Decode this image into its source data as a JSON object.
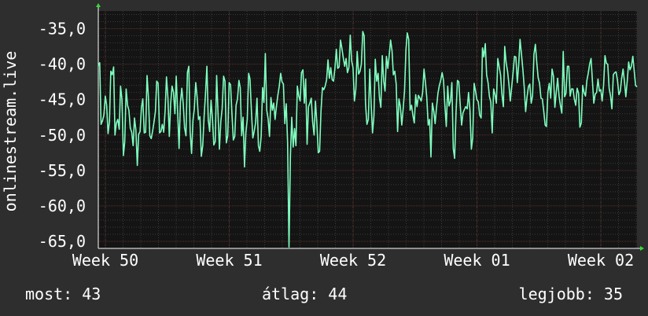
{
  "chart_data": {
    "type": "line",
    "ylabel": "onlinestream.live",
    "yticks": [
      "-35,0",
      "-40,0",
      "-45,0",
      "-50,0",
      "-55,0",
      "-60,0",
      "-65,0"
    ],
    "ylim": [
      -66,
      -32.5
    ],
    "xticks": [
      "Week 50",
      "Week 51",
      "Week 52",
      "Week 01",
      "Week 02"
    ],
    "grid": true,
    "colors": {
      "background": "#2e2e2e",
      "plot": "#141414",
      "line": "#7fffbf",
      "grid_minor": "#3a3a3a",
      "grid_major": "#5a2f2f",
      "axis_arrow": "#33dd33"
    },
    "series": [
      {
        "values": [
          -40.2,
          -39.8,
          -48.5,
          -48.0,
          -47.2,
          -44.5,
          -45.8,
          -49.8,
          -48.1,
          -41.0,
          -41.5,
          -40.4,
          -50.0,
          -48.3,
          -47.8,
          -49.2,
          -43.1,
          -45.0,
          -52.9,
          -51.0,
          -43.5,
          -45.8,
          -46.5,
          -49.0,
          -49.6,
          -51.5,
          -47.6,
          -49.3,
          -54.3,
          -49.9,
          -49.5,
          -46.1,
          -44.9,
          -49.7,
          -49.6,
          -41.6,
          -44.6,
          -50.1,
          -50.5,
          -49.5,
          -48.2,
          -46.7,
          -42.4,
          -42.7,
          -49.7,
          -49.5,
          -48.5,
          -49.6,
          -46.5,
          -41.8,
          -44.7,
          -50.2,
          -45.6,
          -43.1,
          -44.0,
          -47.0,
          -41.7,
          -46.8,
          -51.9,
          -45.4,
          -43.4,
          -45.6,
          -49.0,
          -50.1,
          -41.2,
          -40.3,
          -49.5,
          -52.6,
          -47.9,
          -46.3,
          -42.6,
          -44.7,
          -47.8,
          -47.4,
          -53.0,
          -51.5,
          -47.5,
          -44.2,
          -40.3,
          -47.8,
          -49.5,
          -45.1,
          -47.6,
          -51.4,
          -50.9,
          -41.6,
          -46.8,
          -52.0,
          -48.1,
          -46.3,
          -41.7,
          -42.4,
          -51.1,
          -50.1,
          -42.6,
          -42.9,
          -46.9,
          -50.7,
          -50.2,
          -45.8,
          -44.9,
          -42.3,
          -43.3,
          -50.1,
          -47.5,
          -54.5,
          -49.7,
          -47.8,
          -41.3,
          -42.1,
          -46.6,
          -50.4,
          -49.5,
          -48.3,
          -44.8,
          -51.5,
          -52.3,
          -50.2,
          -43.3,
          -45.4,
          -38.5,
          -46.5,
          -47.7,
          -50.2,
          -44.7,
          -46.5,
          -45.5,
          -47.8,
          -45.9,
          -44.4,
          -43.1,
          -41.3,
          -42.5,
          -42.8,
          -48.4,
          -45.6,
          -51.0,
          -65.8,
          -53.0,
          -47.5,
          -51.7,
          -49.1,
          -51.5,
          -43.1,
          -44.5,
          -45.2,
          -41.2,
          -40.8,
          -45.5,
          -42.1,
          -51.3,
          -46.0,
          -45.5,
          -44.8,
          -48.2,
          -50.0,
          -45.2,
          -48.3,
          -52.5,
          -52.3,
          -46.6,
          -43.3,
          -43.6,
          -43.1,
          -42.2,
          -39.4,
          -42.0,
          -40.5,
          -42.2,
          -42.4,
          -40.6,
          -37.9,
          -40.6,
          -40.4,
          -36.6,
          -37.8,
          -39.1,
          -40.3,
          -39.2,
          -41.2,
          -40.5,
          -35.9,
          -39.5,
          -40.5,
          -45.2,
          -43.5,
          -38.2,
          -41.4,
          -41.0,
          -40.0,
          -35.4,
          -36.0,
          -45.6,
          -48.5,
          -47.8,
          -40.7,
          -45.5,
          -49.7,
          -47.3,
          -39.3,
          -42.4,
          -41.3,
          -44.7,
          -46.1,
          -38.8,
          -42.4,
          -43.8,
          -38.9,
          -40.6,
          -38.8,
          -36.6,
          -38.1,
          -41.5,
          -41.0,
          -42.8,
          -49.5,
          -44.9,
          -46.0,
          -48.6,
          -46.4,
          -43.8,
          -38.0,
          -35.6,
          -36.5,
          -46.5,
          -45.8,
          -47.2,
          -48.3,
          -44.3,
          -46.0,
          -44.4,
          -44.8,
          -45.2,
          -44.0,
          -40.7,
          -42.6,
          -44.7,
          -48.6,
          -47.8,
          -53.1,
          -45.5,
          -46.6,
          -48.4,
          -46.1,
          -44.1,
          -43.0,
          -42.3,
          -41.2,
          -42.3,
          -45.8,
          -48.8,
          -43.1,
          -45.9,
          -45.2,
          -42.6,
          -51.9,
          -53.3,
          -46.8,
          -42.3,
          -42.5,
          -45.7,
          -48.6,
          -46.9,
          -46.4,
          -46.0,
          -46.3,
          -44.0,
          -46.5,
          -52.0,
          -50.4,
          -42.7,
          -43.8,
          -45.0,
          -45.3,
          -47.2,
          -47.6,
          -37.7,
          -39.0,
          -37.1,
          -41.5,
          -42.6,
          -44.6,
          -45.3,
          -49.7,
          -43.5,
          -44.3,
          -45.5,
          -39.2,
          -40.4,
          -41.5,
          -44.3,
          -46.0,
          -37.5,
          -39.8,
          -41.0,
          -42.9,
          -45.2,
          -43.2,
          -41.1,
          -38.9,
          -39.0,
          -42.6,
          -40.2,
          -36.5,
          -38.6,
          -40.8,
          -43.2,
          -46.7,
          -44.6,
          -43.2,
          -42.8,
          -45.5,
          -44.5,
          -38.6,
          -37.2,
          -39.8,
          -41.9,
          -42.7,
          -44.8,
          -44.9,
          -46.6,
          -48.6,
          -48.8,
          -43.9,
          -42.7,
          -44.8,
          -40.7,
          -41.7,
          -46.1,
          -44.0,
          -42.0,
          -44.5,
          -45.8,
          -46.9,
          -38.2,
          -44.6,
          -44.1,
          -40.3,
          -40.3,
          -44.5,
          -43.5,
          -43.5,
          -44.9,
          -45.8,
          -43.4,
          -44.1,
          -48.9,
          -48.3,
          -43.0,
          -44.0,
          -44.5,
          -42.3,
          -41.3,
          -40.0,
          -39.2,
          -42.5,
          -45.5,
          -44.2,
          -44.0,
          -42.1,
          -43.8,
          -43.6,
          -45.2,
          -43.0,
          -38.8,
          -39.9,
          -40.0,
          -43.4,
          -44.5,
          -46.3,
          -41.5,
          -41.2,
          -41.1,
          -42.3,
          -44.3,
          -43.8,
          -42.0,
          -40.7,
          -42.5,
          -44.6,
          -42.4,
          -39.7,
          -40.8,
          -40.3,
          -38.9,
          -41.0,
          -43.0,
          -43.2
        ]
      }
    ]
  },
  "footer": {
    "current": "most: 43",
    "average": "átlag: 44",
    "max": "legjobb: 35"
  }
}
